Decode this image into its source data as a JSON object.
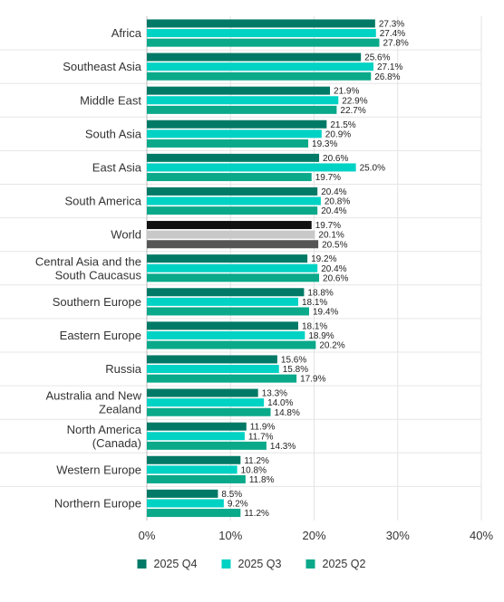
{
  "chart_data": {
    "type": "bar",
    "orientation": "horizontal",
    "categories": [
      "Africa",
      "Southeast Asia",
      "Middle East",
      "South Asia",
      "East Asia",
      "South America",
      "World",
      "Central Asia and the South Caucasus",
      "Southern Europe",
      "Eastern Europe",
      "Russia",
      "Australia and New Zealand",
      "North America (Canada)",
      "Western Europe",
      "Northern Europe"
    ],
    "category_lines": [
      [
        "Africa"
      ],
      [
        "Southeast Asia"
      ],
      [
        "Middle East"
      ],
      [
        "South Asia"
      ],
      [
        "East Asia"
      ],
      [
        "South America"
      ],
      [
        "World"
      ],
      [
        "Central Asia and the",
        "South Caucasus"
      ],
      [
        "Southern Europe"
      ],
      [
        "Eastern Europe"
      ],
      [
        "Russia"
      ],
      [
        "Australia and New",
        "Zealand"
      ],
      [
        "North America",
        "(Canada)"
      ],
      [
        "Western Europe"
      ],
      [
        "Northern Europe"
      ]
    ],
    "series": [
      {
        "name": "2025 Q4",
        "color": "#007a66",
        "values": [
          27.3,
          25.6,
          21.9,
          21.5,
          20.6,
          20.4,
          19.7,
          19.2,
          18.8,
          18.1,
          15.6,
          13.3,
          11.9,
          11.2,
          8.5
        ]
      },
      {
        "name": "2025 Q3",
        "color": "#00d2c4",
        "values": [
          27.4,
          27.1,
          22.9,
          20.9,
          25.0,
          20.8,
          20.1,
          20.4,
          18.1,
          18.9,
          15.8,
          14.0,
          11.7,
          10.8,
          9.2
        ]
      },
      {
        "name": "2025 Q2",
        "color": "#0aa98a",
        "values": [
          27.8,
          26.8,
          22.7,
          19.3,
          19.7,
          20.4,
          20.5,
          20.6,
          19.4,
          20.2,
          17.9,
          14.8,
          14.3,
          11.8,
          11.2
        ]
      }
    ],
    "highlight": {
      "category": "World",
      "colors": [
        "#111111",
        "#c8c8c8",
        "#555555"
      ]
    },
    "value_labels": [
      [
        "27.3%",
        "27.4%",
        "27.8%"
      ],
      [
        "25.6%",
        "27.1%",
        "26.8%"
      ],
      [
        "21.9%",
        "22.9%",
        "22.7%"
      ],
      [
        "21.5%",
        "20.9%",
        "19.3%"
      ],
      [
        "20.6%",
        "25.0%",
        "19.7%"
      ],
      [
        "20.4%",
        "20.8%",
        "20.4%"
      ],
      [
        "19.7%",
        "20.1%",
        "20.5%"
      ],
      [
        "19.2%",
        "20.4%",
        "20.6%"
      ],
      [
        "18.8%",
        "18.1%",
        "19.4%"
      ],
      [
        "18.1%",
        "18.9%",
        "20.2%"
      ],
      [
        "15.6%",
        "15.8%",
        "17.9%"
      ],
      [
        "13.3%",
        "14.0%",
        "14.8%"
      ],
      [
        "11.9%",
        "11.7%",
        "14.3%"
      ],
      [
        "11.2%",
        "10.8%",
        "11.8%"
      ],
      [
        "8.5%",
        "9.2%",
        "11.2%"
      ]
    ],
    "xlim": [
      0,
      40
    ],
    "xticks": [
      0,
      10,
      20,
      30,
      40
    ],
    "xtick_labels": [
      "0%",
      "10%",
      "20%",
      "30%",
      "40%"
    ],
    "grid": "vertical",
    "legend_position": "bottom",
    "title": "",
    "xlabel": "",
    "ylabel": ""
  }
}
